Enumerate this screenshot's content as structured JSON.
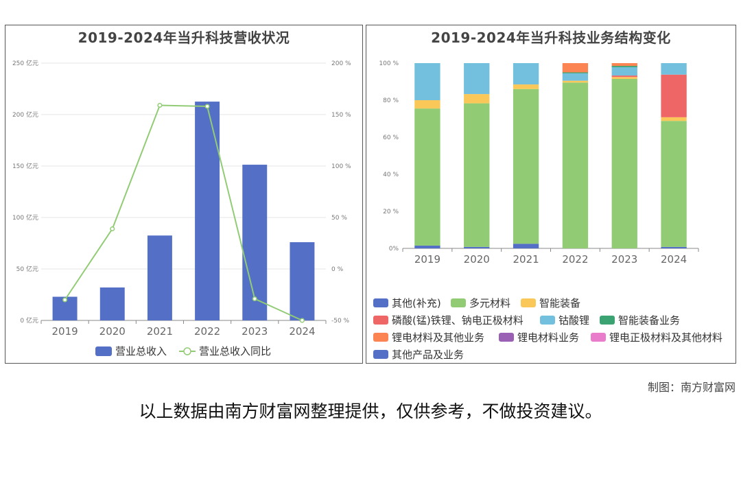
{
  "footer": {
    "credit": "制图：南方财富网",
    "disclaimer": "以上数据由南方财富网整理提供，仅供参考，不做投资建议。"
  },
  "chart_data": [
    {
      "type": "bar",
      "title": "2019-2024年当升科技营收状况",
      "categories": [
        "2019",
        "2020",
        "2021",
        "2022",
        "2023",
        "2024"
      ],
      "series": [
        {
          "name": "营业总收入",
          "kind": "bar",
          "axis": "left",
          "color": "#5470c6",
          "values": [
            23,
            32,
            82.5,
            212.6,
            151.3,
            76
          ]
        },
        {
          "name": "营业总收入同比",
          "kind": "line",
          "axis": "right",
          "color": "#91cc75",
          "values": [
            -30,
            39,
            159,
            158,
            -29,
            -50
          ]
        }
      ],
      "y_left": {
        "ticks": [
          "0 亿元",
          "50 亿元",
          "100 亿元",
          "150 亿元",
          "200 亿元",
          "250 亿元"
        ],
        "ylim": [
          0,
          250
        ]
      },
      "y_right": {
        "ticks": [
          "-50 %",
          "0 %",
          "50 %",
          "100 %",
          "150 %",
          "200 %"
        ],
        "ylim": [
          -50,
          200
        ]
      },
      "grid": true,
      "legend_position": "bottom"
    },
    {
      "type": "bar",
      "stacked": true,
      "title": "2019-2024年当升科技业务结构变化",
      "categories": [
        "2019",
        "2020",
        "2021",
        "2022",
        "2023",
        "2024"
      ],
      "y": {
        "ticks": [
          "0%",
          "20 %",
          "40 %",
          "60 %",
          "80 %",
          "100 %"
        ],
        "ylim": [
          0,
          100
        ]
      },
      "series": [
        {
          "name": "其他(补充)",
          "color": "#5470c6",
          "values": [
            1.5,
            0.8,
            2.5,
            0,
            0,
            0.8
          ]
        },
        {
          "name": "多元材料",
          "color": "#91cc75",
          "values": [
            74,
            77.5,
            83.5,
            89.5,
            91.5,
            68
          ]
        },
        {
          "name": "智能装备",
          "color": "#fac858",
          "values": [
            4.5,
            5,
            2.5,
            1,
            1,
            2
          ]
        },
        {
          "name": "磷酸(锰)铁锂、钠电正极材料",
          "color": "#ee6666",
          "values": [
            0,
            0,
            0,
            0,
            0.8,
            23
          ]
        },
        {
          "name": "钴酸锂",
          "color": "#73c0de",
          "values": [
            20,
            16.7,
            11.5,
            4,
            4.5,
            6.2
          ]
        },
        {
          "name": "智能装备业务",
          "color": "#3ba272",
          "values": [
            0,
            0,
            0,
            0.5,
            0.7,
            0
          ]
        },
        {
          "name": "锂电材料及其他业务",
          "color": "#fc8452",
          "values": [
            0,
            0,
            0,
            5,
            1.5,
            0
          ]
        },
        {
          "name": "锂电材料业务",
          "color": "#9a60b4",
          "values": [
            0,
            0,
            0,
            0,
            0,
            0
          ]
        },
        {
          "name": "锂电正极材料及其他材料",
          "color": "#ea7ccc",
          "values": [
            0,
            0,
            0,
            0,
            0,
            0
          ]
        },
        {
          "name": "其他产品及业务",
          "color": "#5470c6",
          "values": [
            0,
            0,
            0,
            0,
            0,
            0
          ]
        }
      ],
      "grid": false,
      "legend_position": "bottom"
    }
  ]
}
